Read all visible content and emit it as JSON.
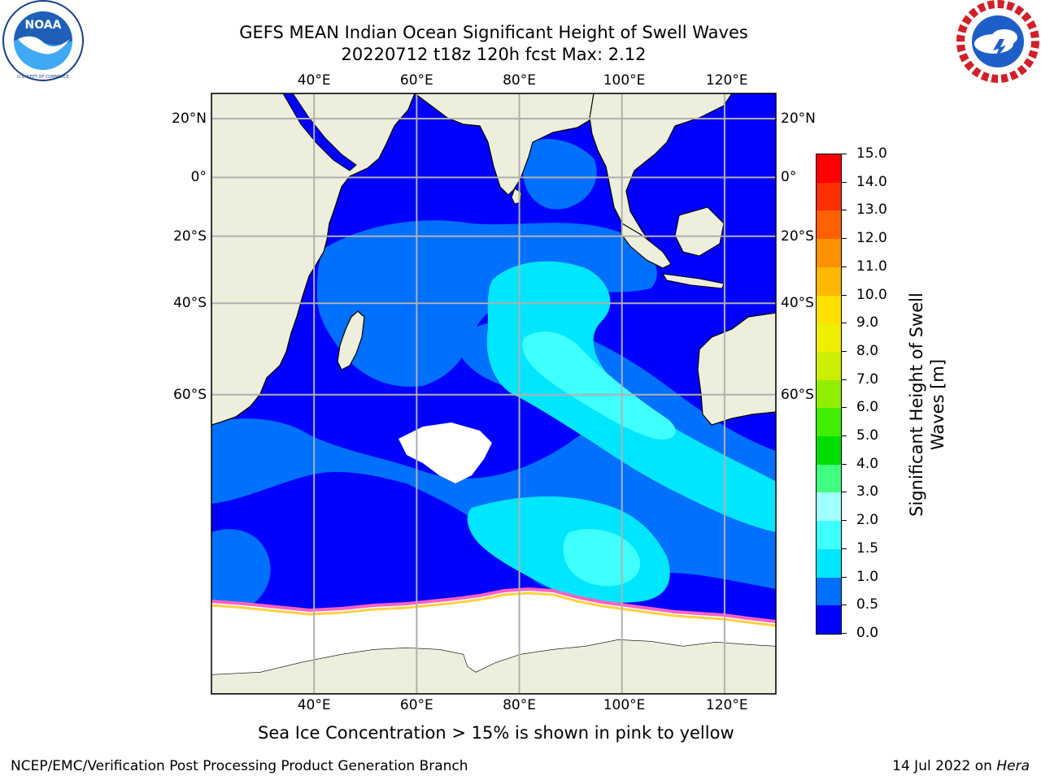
{
  "title_line1": "GEFS MEAN Indian Ocean Significant Height of Swell Waves",
  "title_line2": "20220712 t18z 120h fcst   Max: 2.12",
  "logos": {
    "left": {
      "name": "NOAA",
      "ring_text": "NATIONAL OCEANIC AND ATMOSPHERIC ADMINISTRATION · U.S. DEPARTMENT OF COMMERCE"
    },
    "right": {
      "name": "NATIONAL WEATHER SERVICE"
    }
  },
  "map": {
    "lon_range": [
      20,
      130
    ],
    "lat_range": [
      -85,
      28
    ],
    "lon_ticks": [
      {
        "value": 40,
        "label": "40°E"
      },
      {
        "value": 60,
        "label": "60°E"
      },
      {
        "value": 80,
        "label": "80°E"
      },
      {
        "value": 100,
        "label": "100°E"
      },
      {
        "value": 120,
        "label": "120°E"
      }
    ],
    "lat_ticks": [
      {
        "value": 20,
        "label": "20°N"
      },
      {
        "value": 0,
        "label": "0°"
      },
      {
        "value": -20,
        "label": "20°S"
      },
      {
        "value": -40,
        "label": "40°S"
      },
      {
        "value": -60,
        "label": "60°S"
      }
    ],
    "colors": {
      "land": "#eeeedd",
      "ice": "#ffffff",
      "grid": "#b0b0b0",
      "coast": "#000000"
    }
  },
  "colorbar": {
    "label": "Significant Height of Swell Waves [m]",
    "ticks": [
      "0.0",
      "0.5",
      "1.0",
      "1.5",
      "2.0",
      "3.0",
      "4.0",
      "5.0",
      "6.0",
      "7.0",
      "8.0",
      "9.0",
      "10.0",
      "11.0",
      "12.0",
      "13.0",
      "14.0",
      "15.0"
    ],
    "colors": [
      "#0000ff",
      "#0070ff",
      "#00e6ff",
      "#40ffff",
      "#a0ffff",
      "#40ff80",
      "#00dd00",
      "#40ee00",
      "#90ee00",
      "#ccee00",
      "#eeee00",
      "#ffe000",
      "#ffb800",
      "#ff9000",
      "#ff6000",
      "#ff3000",
      "#ff0000"
    ]
  },
  "ice_note": "Sea Ice Concentration > 15% is shown in pink to yellow",
  "footer_left": "NCEP/EMC/Verification Post Processing Product Generation Branch",
  "footer_right_date": "14 Jul 2022 on ",
  "footer_right_host": "Hera"
}
